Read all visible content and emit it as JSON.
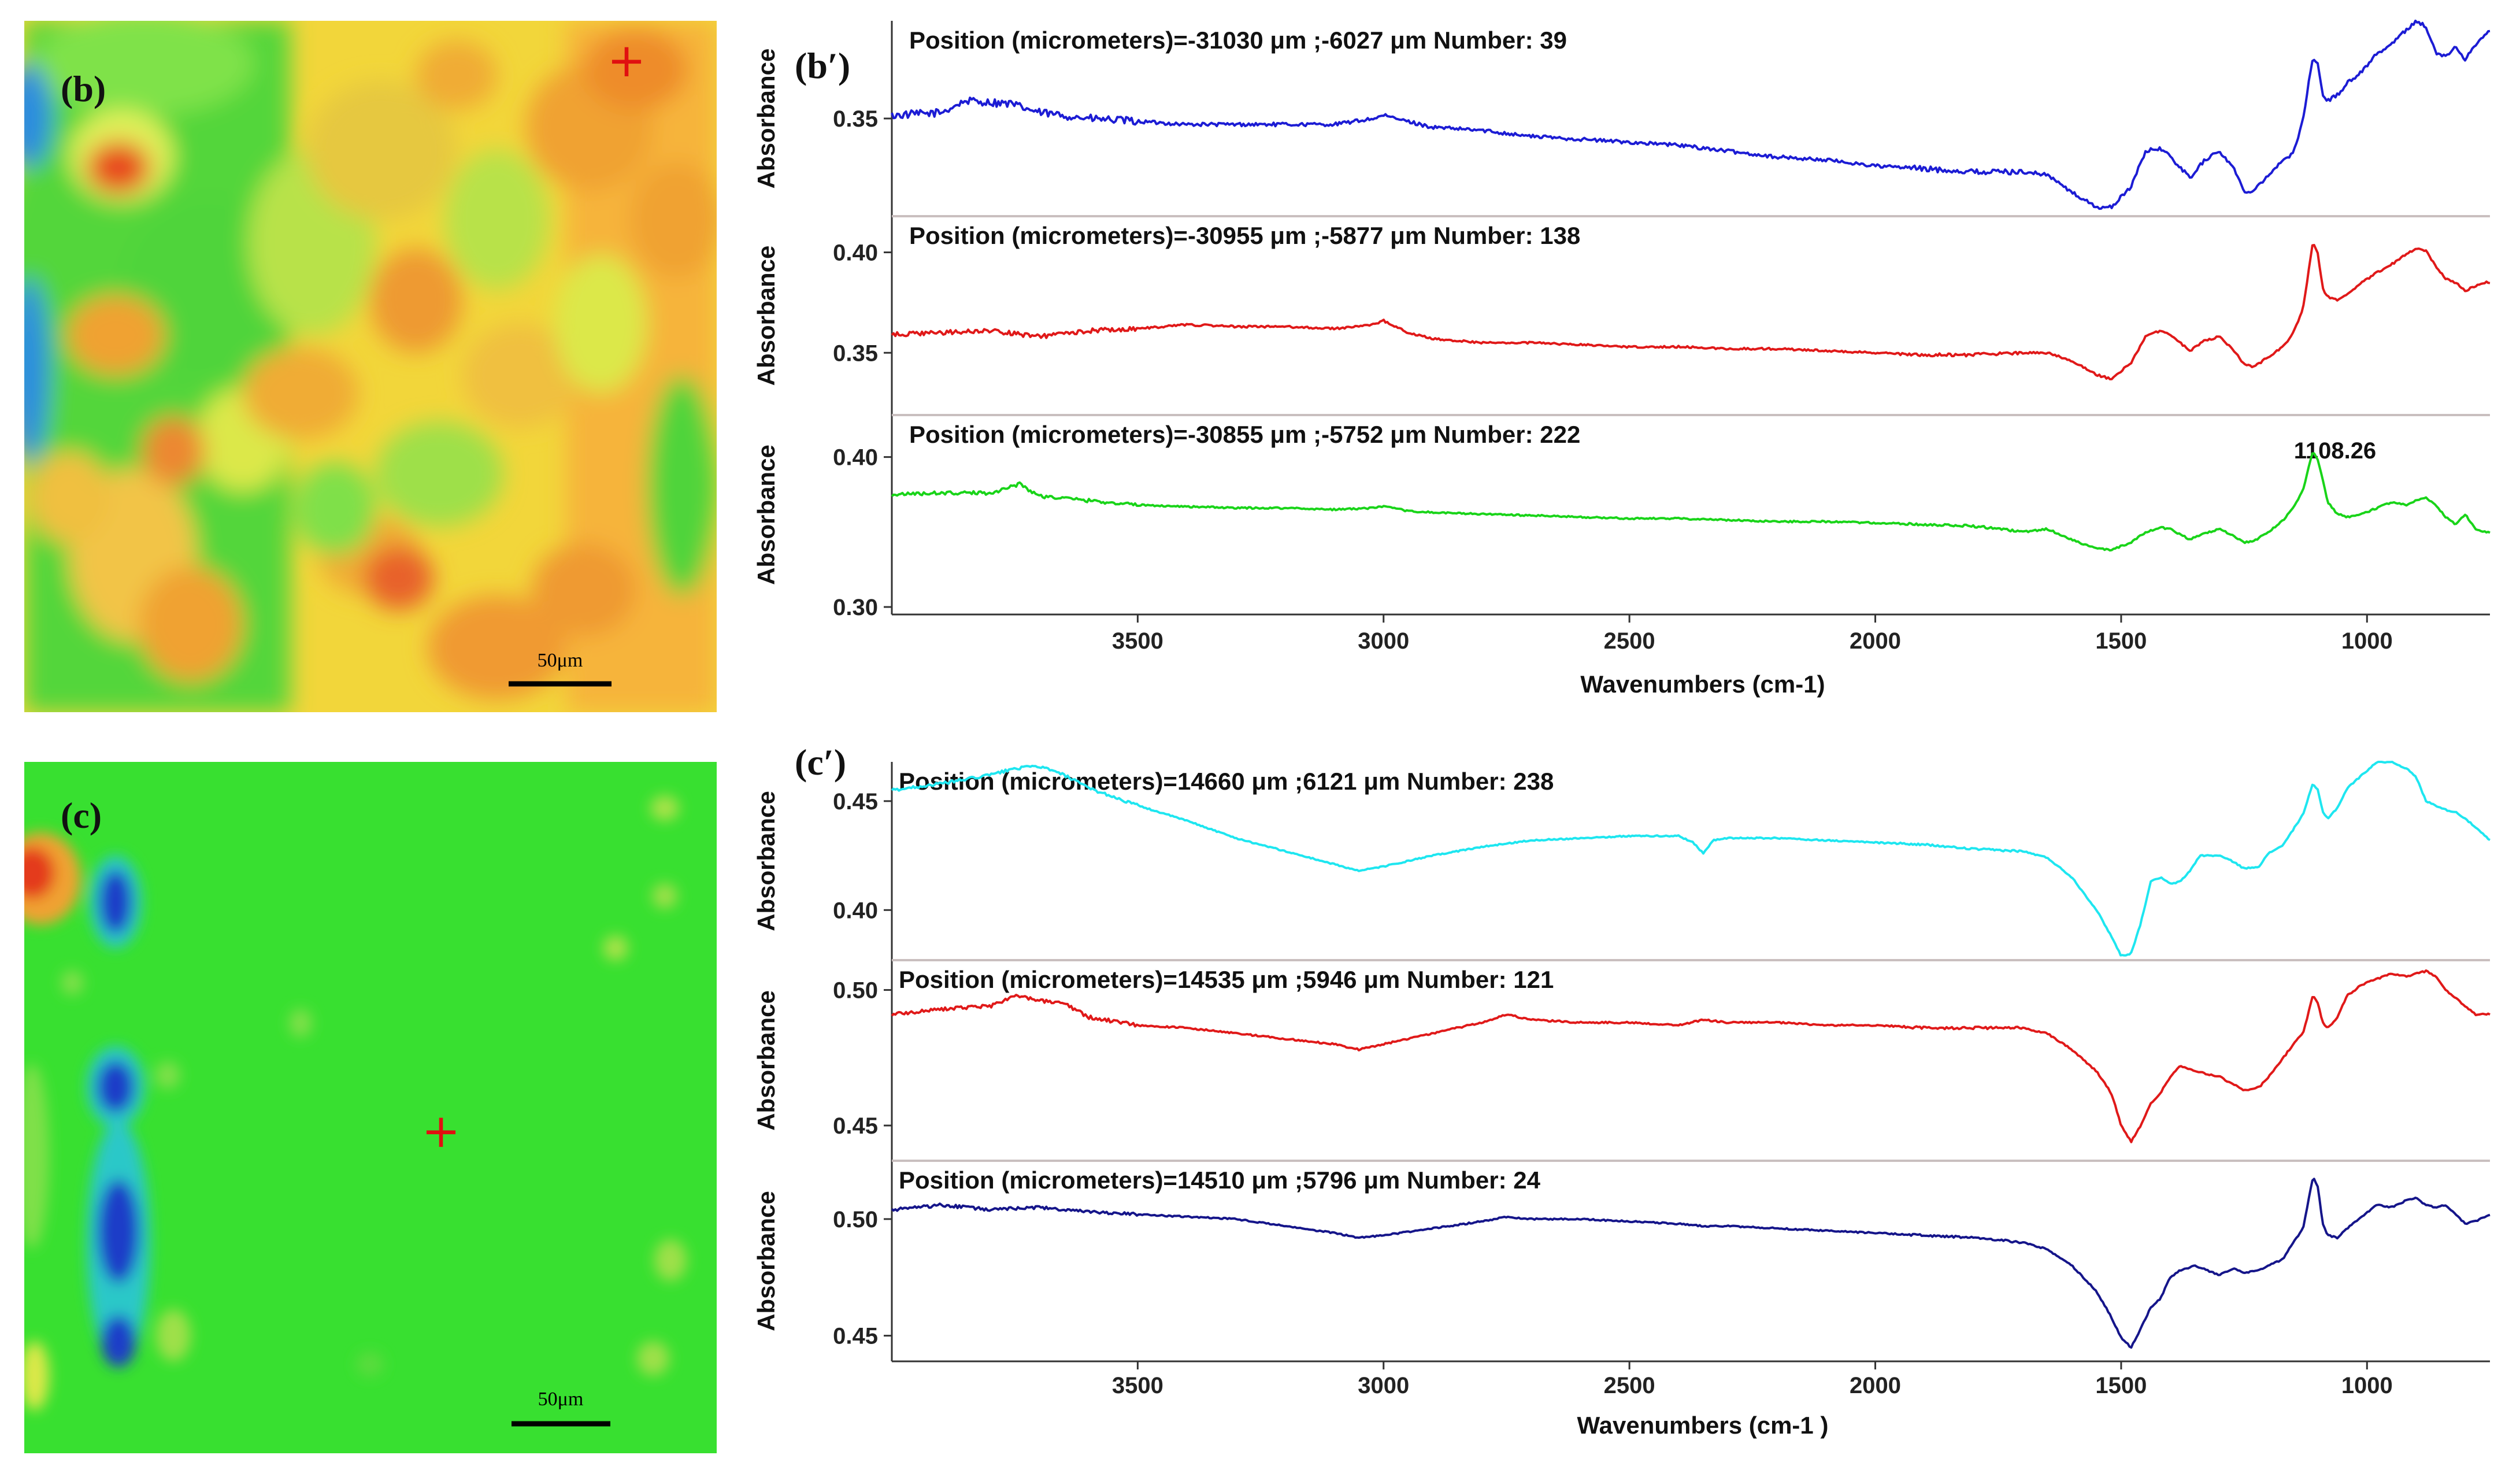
{
  "maps": {
    "b": {
      "label": "(b)",
      "scale": "50μm"
    },
    "c": {
      "label": "(c)",
      "scale": "50μm"
    }
  },
  "chart_data": [
    {
      "id": "b-prime",
      "type": "line",
      "panel_label": "(b′)",
      "xlabel": "Wavenumbers (cm-1)",
      "xlim": [
        4000,
        750
      ],
      "x_ticks": [
        3500,
        3000,
        2500,
        2000,
        1500,
        1000
      ],
      "annotation": {
        "text": "1108.26",
        "x": 1108.26,
        "y": 0.404
      },
      "subplots": [
        {
          "title": "Position (micrometers)=-31030 μm ;-6027 μm  Number: 39",
          "ylabel": "Absorbance",
          "ylim": [
            0.317,
            0.383
          ],
          "y_ticks": [
            0.35
          ],
          "color": "#1c1cd4",
          "noise": 0.0012,
          "x": [
            4000,
            3900,
            3850,
            3760,
            3700,
            3600,
            3500,
            3400,
            3200,
            3100,
            3020,
            3000,
            2950,
            2900,
            2800,
            2700,
            2600,
            2500,
            2400,
            2300,
            2200,
            2100,
            2000,
            1900,
            1800,
            1700,
            1650,
            1600,
            1570,
            1550,
            1520,
            1480,
            1450,
            1420,
            1400,
            1360,
            1330,
            1300,
            1270,
            1250,
            1230,
            1200,
            1170,
            1150,
            1130,
            1110,
            1100,
            1090,
            1080,
            1060,
            1040,
            1010,
            980,
            950,
            920,
            900,
            880,
            860,
            840,
            820,
            800,
            780,
            760,
            750
          ],
          "y": [
            0.351,
            0.352,
            0.356,
            0.355,
            0.352,
            0.35,
            0.349,
            0.348,
            0.348,
            0.348,
            0.35,
            0.351,
            0.349,
            0.347,
            0.346,
            0.344,
            0.343,
            0.342,
            0.341,
            0.339,
            0.337,
            0.336,
            0.334,
            0.333,
            0.332,
            0.332,
            0.331,
            0.325,
            0.322,
            0.32,
            0.32,
            0.327,
            0.339,
            0.34,
            0.337,
            0.33,
            0.336,
            0.339,
            0.333,
            0.325,
            0.326,
            0.331,
            0.336,
            0.338,
            0.35,
            0.371,
            0.368,
            0.358,
            0.356,
            0.358,
            0.362,
            0.366,
            0.372,
            0.375,
            0.38,
            0.383,
            0.381,
            0.372,
            0.371,
            0.374,
            0.37,
            0.375,
            0.378,
            0.38
          ]
        },
        {
          "title": "Position (micrometers)=-30955 μm ;-5877 μm  Number: 138",
          "ylabel": "Absorbance",
          "ylim": [
            0.319,
            0.418
          ],
          "y_ticks": [
            0.35,
            0.4
          ],
          "color": "#e01919",
          "noise": 0.001,
          "x": [
            4000,
            3900,
            3800,
            3700,
            3600,
            3500,
            3400,
            3300,
            3200,
            3100,
            3020,
            3000,
            2950,
            2900,
            2800,
            2700,
            2600,
            2500,
            2400,
            2300,
            2200,
            2100,
            2000,
            1900,
            1800,
            1700,
            1650,
            1600,
            1570,
            1550,
            1520,
            1480,
            1450,
            1420,
            1400,
            1360,
            1330,
            1300,
            1270,
            1250,
            1230,
            1200,
            1170,
            1150,
            1130,
            1110,
            1100,
            1090,
            1080,
            1060,
            1040,
            1010,
            980,
            950,
            920,
            900,
            880,
            860,
            840,
            820,
            800,
            780,
            760,
            750
          ],
          "y": [
            0.359,
            0.36,
            0.361,
            0.358,
            0.361,
            0.362,
            0.364,
            0.363,
            0.363,
            0.362,
            0.364,
            0.366,
            0.36,
            0.357,
            0.355,
            0.355,
            0.354,
            0.353,
            0.353,
            0.352,
            0.352,
            0.351,
            0.35,
            0.349,
            0.349,
            0.35,
            0.35,
            0.346,
            0.342,
            0.339,
            0.337,
            0.345,
            0.358,
            0.361,
            0.359,
            0.351,
            0.356,
            0.358,
            0.351,
            0.344,
            0.343,
            0.348,
            0.353,
            0.36,
            0.372,
            0.405,
            0.399,
            0.382,
            0.378,
            0.376,
            0.379,
            0.385,
            0.39,
            0.394,
            0.399,
            0.402,
            0.401,
            0.393,
            0.387,
            0.385,
            0.381,
            0.383,
            0.385,
            0.385
          ]
        },
        {
          "title": "Position (micrometers)=-30855 μm ;-5752 μm  Number: 222",
          "ylabel": "Absorbance",
          "ylim": [
            0.295,
            0.428
          ],
          "y_ticks": [
            0.3,
            0.4
          ],
          "color": "#19d419",
          "noise": 0.0011,
          "x": [
            4000,
            3900,
            3800,
            3740,
            3700,
            3600,
            3500,
            3400,
            3300,
            3200,
            3100,
            3020,
            3000,
            2950,
            2900,
            2800,
            2700,
            2600,
            2500,
            2400,
            2300,
            2200,
            2100,
            2000,
            1900,
            1800,
            1750,
            1700,
            1650,
            1600,
            1570,
            1550,
            1520,
            1480,
            1450,
            1420,
            1400,
            1360,
            1330,
            1300,
            1270,
            1250,
            1230,
            1200,
            1170,
            1150,
            1130,
            1110,
            1100,
            1090,
            1080,
            1060,
            1040,
            1010,
            980,
            950,
            920,
            900,
            880,
            860,
            840,
            820,
            800,
            780,
            760,
            750
          ],
          "y": [
            0.375,
            0.376,
            0.376,
            0.382,
            0.374,
            0.371,
            0.368,
            0.367,
            0.366,
            0.366,
            0.365,
            0.366,
            0.367,
            0.364,
            0.363,
            0.362,
            0.361,
            0.36,
            0.359,
            0.359,
            0.358,
            0.357,
            0.357,
            0.356,
            0.355,
            0.354,
            0.352,
            0.35,
            0.352,
            0.345,
            0.341,
            0.339,
            0.338,
            0.343,
            0.35,
            0.353,
            0.352,
            0.345,
            0.349,
            0.352,
            0.347,
            0.343,
            0.344,
            0.35,
            0.358,
            0.366,
            0.378,
            0.404,
            0.398,
            0.385,
            0.37,
            0.362,
            0.36,
            0.362,
            0.366,
            0.37,
            0.368,
            0.371,
            0.373,
            0.368,
            0.36,
            0.355,
            0.362,
            0.352,
            0.35,
            0.35
          ]
        }
      ]
    },
    {
      "id": "c-prime",
      "type": "line",
      "panel_label": "(c′)",
      "xlabel": "Wavenumbers (cm-1 )",
      "xlim": [
        4000,
        750
      ],
      "x_ticks": [
        3500,
        3000,
        2500,
        2000,
        1500,
        1000
      ],
      "subplots": [
        {
          "title": "Position (micrometers)=14660 μm ;6121 μm  Number: 238",
          "ylabel": "Absorbance",
          "ylim": [
            0.377,
            0.468
          ],
          "y_ticks": [
            0.4,
            0.45
          ],
          "color": "#1ee6f0",
          "noise": 0.0006,
          "x": [
            4000,
            3900,
            3800,
            3750,
            3700,
            3650,
            3600,
            3500,
            3400,
            3300,
            3200,
            3100,
            3050,
            3000,
            2900,
            2800,
            2700,
            2600,
            2500,
            2400,
            2370,
            2350,
            2330,
            2300,
            2200,
            2100,
            2000,
            1900,
            1800,
            1700,
            1650,
            1600,
            1550,
            1520,
            1500,
            1480,
            1460,
            1440,
            1420,
            1400,
            1380,
            1360,
            1340,
            1300,
            1270,
            1250,
            1220,
            1200,
            1170,
            1150,
            1130,
            1110,
            1100,
            1090,
            1080,
            1060,
            1040,
            1010,
            980,
            950,
            920,
            900,
            880,
            860,
            840,
            820,
            800,
            780,
            760,
            750
          ],
          "y": [
            0.455,
            0.458,
            0.462,
            0.465,
            0.466,
            0.462,
            0.456,
            0.448,
            0.441,
            0.433,
            0.427,
            0.421,
            0.418,
            0.42,
            0.425,
            0.429,
            0.432,
            0.433,
            0.434,
            0.434,
            0.431,
            0.426,
            0.432,
            0.433,
            0.433,
            0.432,
            0.431,
            0.43,
            0.428,
            0.427,
            0.424,
            0.415,
            0.4,
            0.388,
            0.379,
            0.38,
            0.394,
            0.413,
            0.415,
            0.412,
            0.413,
            0.418,
            0.425,
            0.425,
            0.422,
            0.419,
            0.42,
            0.426,
            0.43,
            0.437,
            0.444,
            0.458,
            0.455,
            0.445,
            0.442,
            0.447,
            0.456,
            0.462,
            0.468,
            0.468,
            0.465,
            0.461,
            0.45,
            0.448,
            0.446,
            0.445,
            0.442,
            0.438,
            0.434,
            0.432
          ]
        },
        {
          "title": "Position (micrometers)=14535 μm ;5946 μm  Number: 121",
          "ylabel": "Absorbance",
          "ylim": [
            0.437,
            0.511
          ],
          "y_ticks": [
            0.45,
            0.5
          ],
          "color": "#e01919",
          "noise": 0.0006,
          "x": [
            4000,
            3900,
            3800,
            3750,
            3700,
            3650,
            3600,
            3500,
            3400,
            3300,
            3200,
            3100,
            3050,
            3000,
            2900,
            2800,
            2750,
            2700,
            2600,
            2500,
            2400,
            2350,
            2300,
            2200,
            2100,
            2000,
            1900,
            1800,
            1700,
            1650,
            1600,
            1550,
            1520,
            1500,
            1480,
            1460,
            1440,
            1420,
            1400,
            1380,
            1350,
            1300,
            1270,
            1250,
            1220,
            1200,
            1170,
            1150,
            1130,
            1110,
            1100,
            1090,
            1080,
            1060,
            1040,
            1010,
            980,
            950,
            920,
            900,
            880,
            860,
            840,
            820,
            800,
            780,
            760,
            750
          ],
          "y": [
            0.491,
            0.493,
            0.494,
            0.498,
            0.496,
            0.495,
            0.49,
            0.487,
            0.486,
            0.484,
            0.482,
            0.48,
            0.478,
            0.48,
            0.484,
            0.488,
            0.491,
            0.489,
            0.488,
            0.488,
            0.487,
            0.489,
            0.488,
            0.488,
            0.487,
            0.487,
            0.486,
            0.486,
            0.486,
            0.484,
            0.478,
            0.47,
            0.462,
            0.45,
            0.444,
            0.45,
            0.458,
            0.462,
            0.468,
            0.472,
            0.47,
            0.468,
            0.465,
            0.463,
            0.464,
            0.468,
            0.475,
            0.48,
            0.484,
            0.498,
            0.495,
            0.488,
            0.486,
            0.49,
            0.498,
            0.502,
            0.504,
            0.506,
            0.505,
            0.506,
            0.507,
            0.505,
            0.5,
            0.497,
            0.494,
            0.491,
            0.491,
            0.491
          ]
        },
        {
          "title": "Position (micrometers)=14510 μm ;5796 μm  Number: 24",
          "ylabel": "Absorbance",
          "ylim": [
            0.439,
            0.525
          ],
          "y_ticks": [
            0.45,
            0.5
          ],
          "color": "#15158a",
          "noise": 0.0006,
          "x": [
            4000,
            3900,
            3800,
            3700,
            3600,
            3500,
            3400,
            3300,
            3200,
            3100,
            3050,
            3000,
            2900,
            2800,
            2750,
            2700,
            2600,
            2500,
            2400,
            2350,
            2300,
            2200,
            2100,
            2000,
            1900,
            1800,
            1700,
            1650,
            1600,
            1550,
            1520,
            1500,
            1480,
            1460,
            1440,
            1420,
            1400,
            1380,
            1350,
            1300,
            1270,
            1250,
            1220,
            1200,
            1170,
            1150,
            1130,
            1110,
            1100,
            1090,
            1080,
            1060,
            1040,
            1010,
            980,
            950,
            920,
            900,
            880,
            860,
            840,
            820,
            800,
            780,
            760,
            750
          ],
          "y": [
            0.504,
            0.506,
            0.504,
            0.505,
            0.503,
            0.502,
            0.501,
            0.5,
            0.497,
            0.494,
            0.492,
            0.493,
            0.496,
            0.499,
            0.501,
            0.5,
            0.5,
            0.499,
            0.498,
            0.497,
            0.497,
            0.496,
            0.495,
            0.494,
            0.493,
            0.492,
            0.49,
            0.487,
            0.48,
            0.469,
            0.458,
            0.449,
            0.445,
            0.453,
            0.462,
            0.466,
            0.475,
            0.478,
            0.48,
            0.476,
            0.479,
            0.477,
            0.478,
            0.48,
            0.483,
            0.49,
            0.496,
            0.518,
            0.514,
            0.498,
            0.493,
            0.492,
            0.496,
            0.501,
            0.506,
            0.505,
            0.508,
            0.509,
            0.506,
            0.505,
            0.506,
            0.502,
            0.498,
            0.499,
            0.501,
            0.502
          ]
        }
      ]
    }
  ]
}
